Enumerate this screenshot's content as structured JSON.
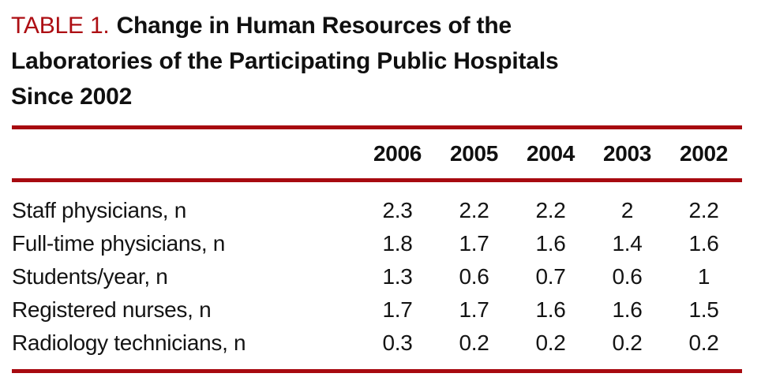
{
  "title": {
    "label": "TABLE 1.",
    "line1": "Change in Human Resources of the",
    "line2": "Laboratories of the Participating Public Hospitals",
    "line3": "Since 2002"
  },
  "colors": {
    "accent_red": "#a70a10",
    "title_red": "#ad0e13",
    "text_black": "#111111"
  },
  "table": {
    "columns": [
      "2006",
      "2005",
      "2004",
      "2003",
      "2002"
    ],
    "rows": [
      {
        "label": "Staff physicians, n",
        "values": [
          "2.3",
          "2.2",
          "2.2",
          "2",
          "2.2"
        ]
      },
      {
        "label": "Full-time physicians, n",
        "values": [
          "1.8",
          "1.7",
          "1.6",
          "1.4",
          "1.6"
        ]
      },
      {
        "label": "Students/year, n",
        "values": [
          "1.3",
          "0.6",
          "0.7",
          "0.6",
          "1"
        ]
      },
      {
        "label": "Registered nurses, n",
        "values": [
          "1.7",
          "1.7",
          "1.6",
          "1.6",
          "1.5"
        ]
      },
      {
        "label": "Radiology technicians, n",
        "values": [
          "0.3",
          "0.2",
          "0.2",
          "0.2",
          "0.2"
        ]
      }
    ]
  }
}
